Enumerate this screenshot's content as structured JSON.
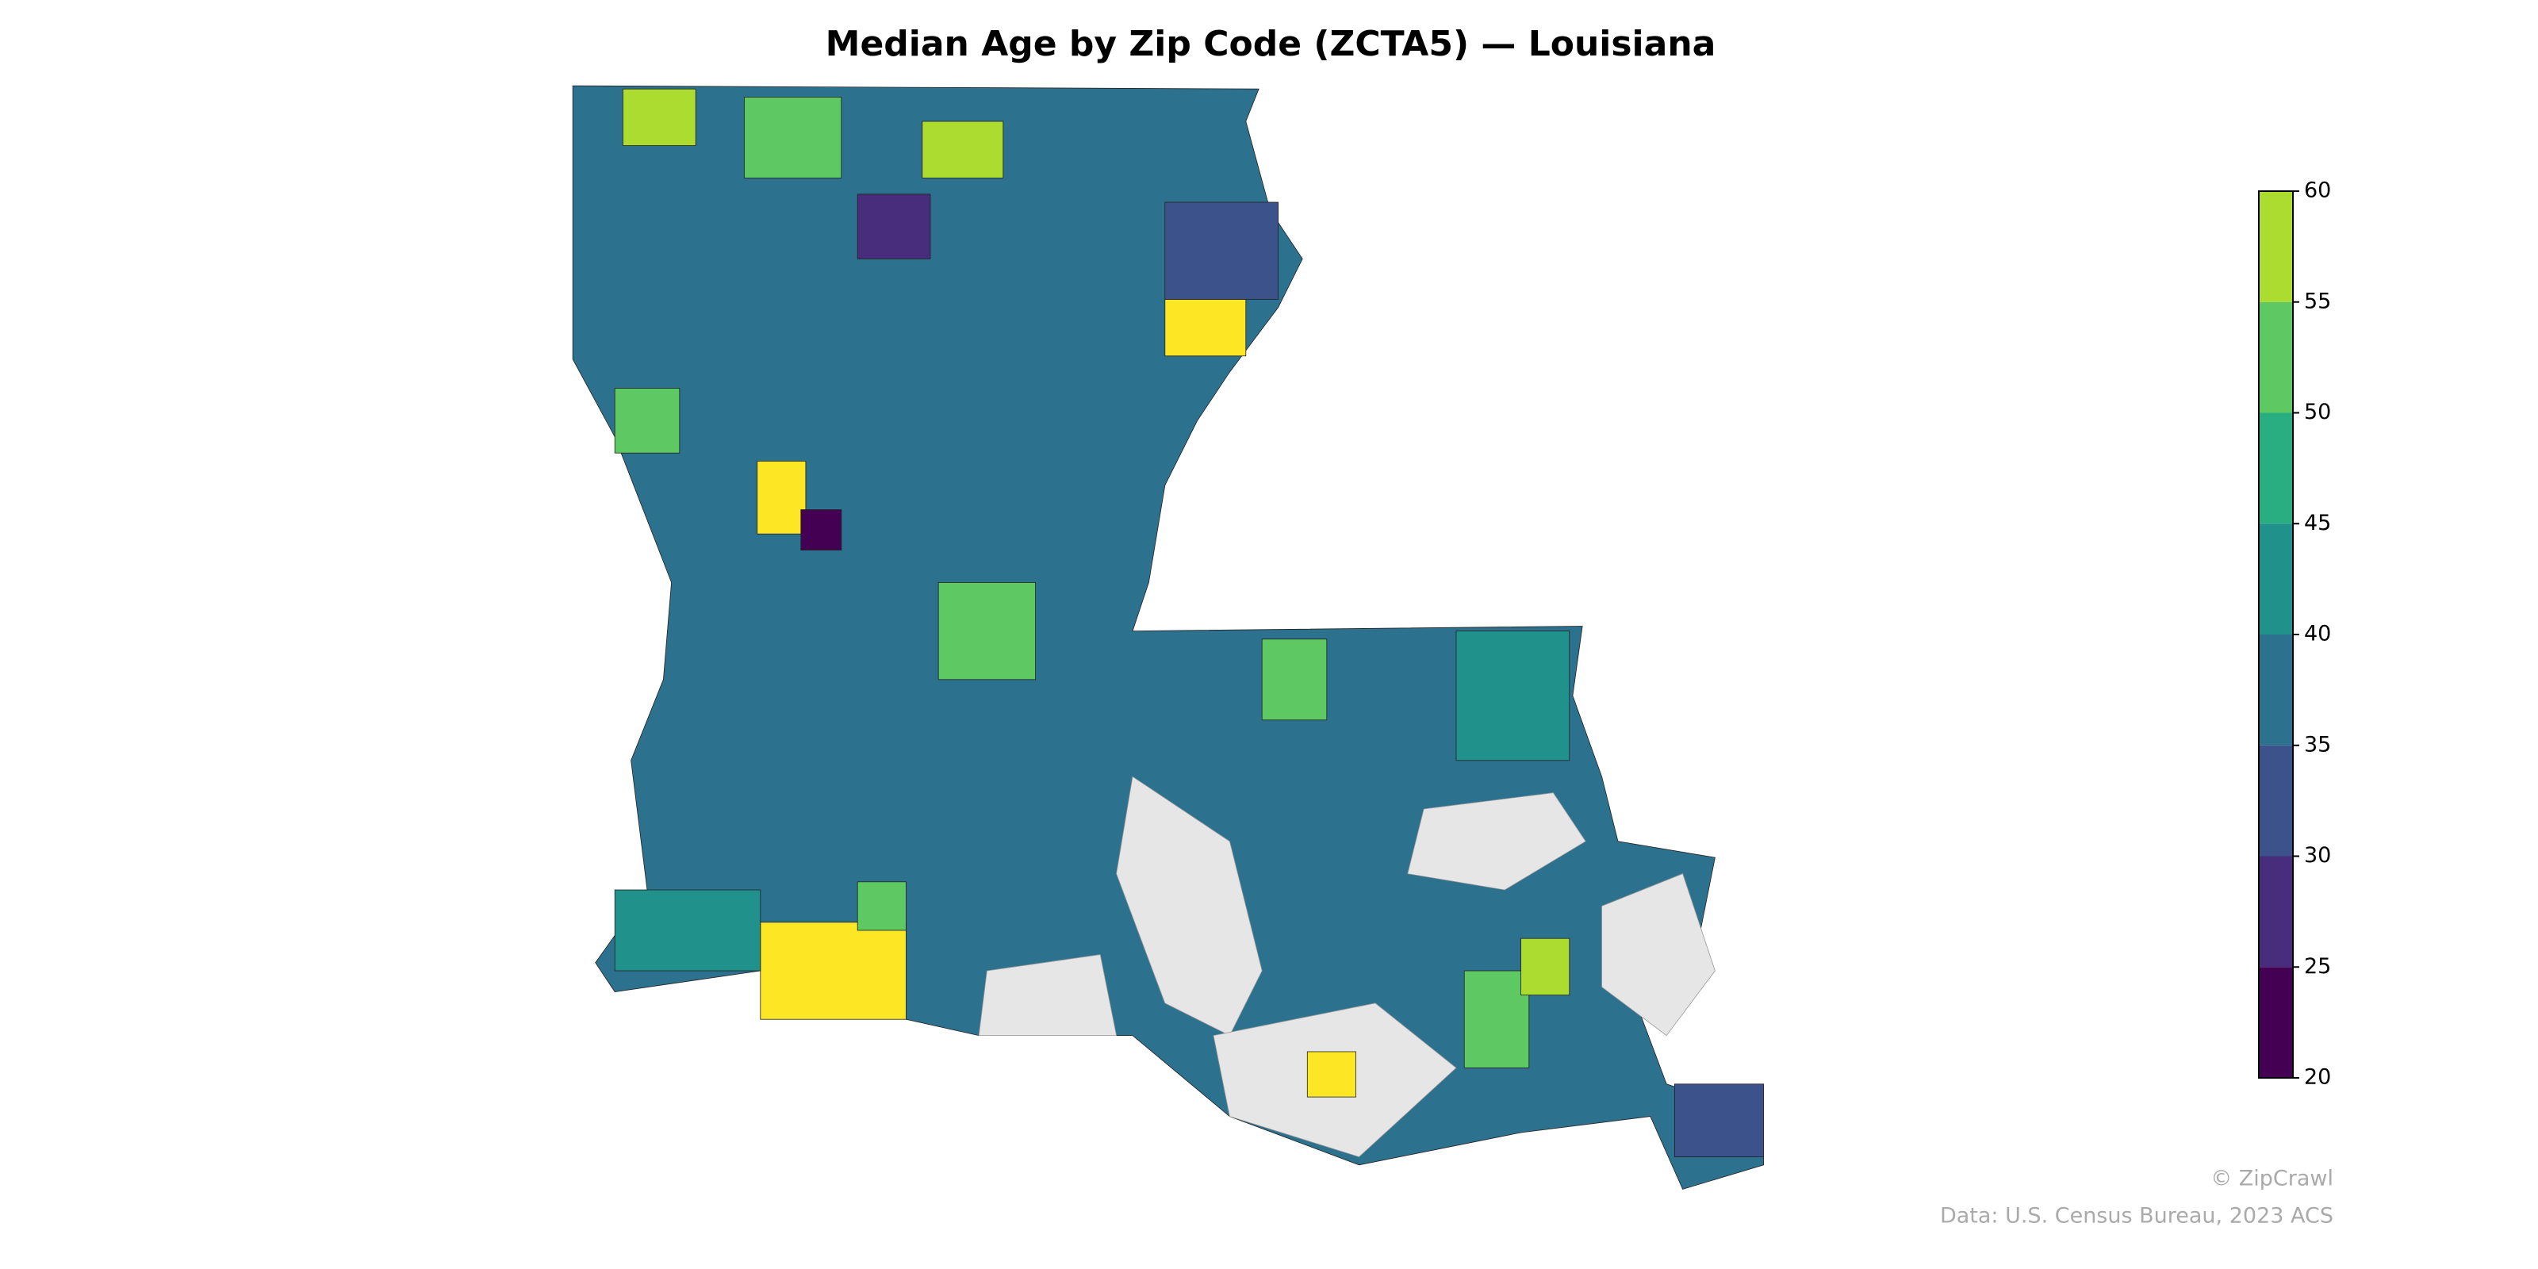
{
  "title": "Median Age by Zip Code (ZCTA5) — Louisiana",
  "colorbar": {
    "ticks": [
      20,
      25,
      30,
      35,
      40,
      45,
      50,
      55,
      60
    ],
    "colors": [
      "#440154",
      "#472d7b",
      "#3b528b",
      "#2c728e",
      "#21918c",
      "#28ae80",
      "#5ec962",
      "#addc30",
      "#fde725"
    ]
  },
  "footer": {
    "credit": "© ZipCrawl",
    "source": "Data: U.S. Census Bureau, 2023 ACS"
  }
}
